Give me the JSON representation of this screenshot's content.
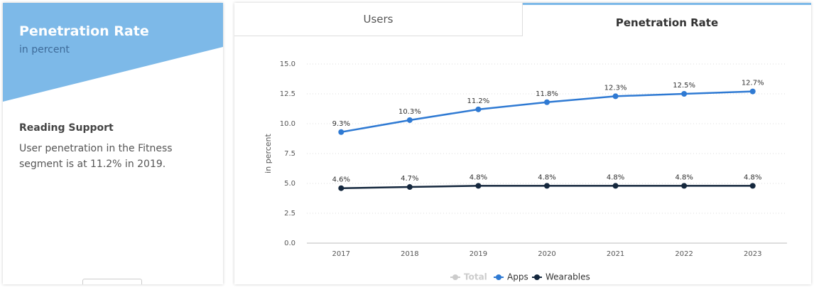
{
  "sidebar": {
    "title": "Penetration Rate",
    "subtitle": "in percent",
    "section_title": "Reading Support",
    "section_text": "User penetration in the Fitness segment is at 11.2% in 2019."
  },
  "tabs": [
    {
      "label": "Users",
      "active": false
    },
    {
      "label": "Penetration Rate",
      "active": true
    }
  ],
  "chart_data": {
    "type": "line",
    "ylabel": "in percent",
    "categories": [
      "2017",
      "2018",
      "2019",
      "2020",
      "2021",
      "2022",
      "2023"
    ],
    "ylim": [
      0,
      15
    ],
    "yticks": [
      {
        "value": 0,
        "label": "0.0"
      },
      {
        "value": 2.5,
        "label": "2.5"
      },
      {
        "value": 5,
        "label": "5.0"
      },
      {
        "value": 7.5,
        "label": "7.5"
      },
      {
        "value": 10,
        "label": "10.0"
      },
      {
        "value": 12.5,
        "label": "12.5"
      },
      {
        "value": 15,
        "label": "15.0"
      }
    ],
    "grid": true,
    "series": [
      {
        "name": "Total",
        "color": "#cccccc",
        "visible": false,
        "values": [
          null,
          null,
          null,
          null,
          null,
          null,
          null
        ]
      },
      {
        "name": "Apps",
        "color": "#2f7ad3",
        "visible": true,
        "values": [
          9.3,
          10.3,
          11.2,
          11.8,
          12.3,
          12.5,
          12.7
        ],
        "value_labels": [
          "9.3%",
          "10.3%",
          "11.2%",
          "11.8%",
          "12.3%",
          "12.5%",
          "12.7%"
        ]
      },
      {
        "name": "Wearables",
        "color": "#14273d",
        "visible": true,
        "values": [
          4.6,
          4.7,
          4.8,
          4.8,
          4.8,
          4.8,
          4.8
        ],
        "value_labels": [
          "4.6%",
          "4.7%",
          "4.8%",
          "4.8%",
          "4.8%",
          "4.8%",
          "4.8%"
        ]
      }
    ]
  }
}
